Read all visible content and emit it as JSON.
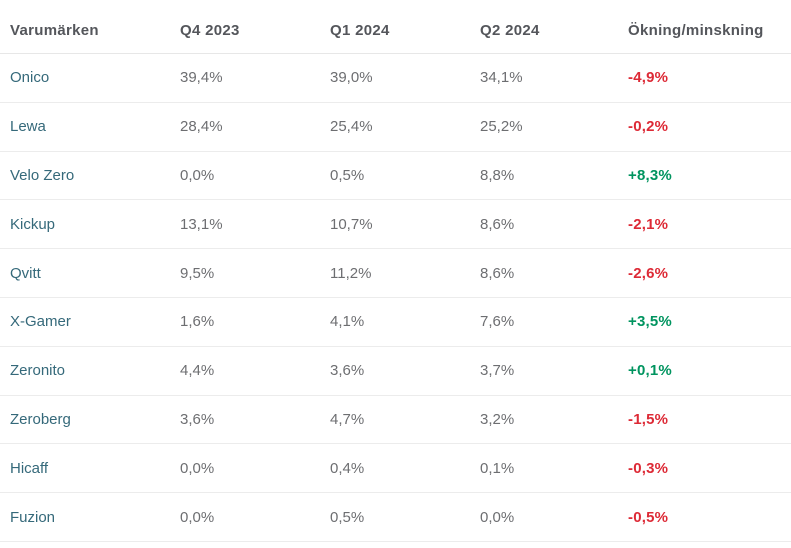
{
  "table": {
    "columns": {
      "brand": "Varumärken",
      "q4_2023": "Q4 2023",
      "q1_2024": "Q1 2024",
      "q2_2024": "Q2 2024",
      "change": "Ökning/minskning"
    },
    "rows": [
      {
        "brand": "Onico",
        "q4_2023": "39,4%",
        "q1_2024": "39,0%",
        "q2_2024": "34,1%",
        "change": "-4,9%",
        "direction": "down"
      },
      {
        "brand": "Lewa",
        "q4_2023": "28,4%",
        "q1_2024": "25,4%",
        "q2_2024": "25,2%",
        "change": "-0,2%",
        "direction": "down"
      },
      {
        "brand": "Velo Zero",
        "q4_2023": "0,0%",
        "q1_2024": "0,5%",
        "q2_2024": "8,8%",
        "change": "+8,3%",
        "direction": "up"
      },
      {
        "brand": "Kickup",
        "q4_2023": "13,1%",
        "q1_2024": "10,7%",
        "q2_2024": "8,6%",
        "change": "-2,1%",
        "direction": "down"
      },
      {
        "brand": "Qvitt",
        "q4_2023": "9,5%",
        "q1_2024": "11,2%",
        "q2_2024": "8,6%",
        "change": "-2,6%",
        "direction": "down"
      },
      {
        "brand": "X-Gamer",
        "q4_2023": "1,6%",
        "q1_2024": "4,1%",
        "q2_2024": "7,6%",
        "change": "+3,5%",
        "direction": "up"
      },
      {
        "brand": "Zeronito",
        "q4_2023": "4,4%",
        "q1_2024": "3,6%",
        "q2_2024": "3,7%",
        "change": "+0,1%",
        "direction": "up"
      },
      {
        "brand": "Zeroberg",
        "q4_2023": "3,6%",
        "q1_2024": "4,7%",
        "q2_2024": "3,2%",
        "change": "-1,5%",
        "direction": "down"
      },
      {
        "brand": "Hicaff",
        "q4_2023": "0,0%",
        "q1_2024": "0,4%",
        "q2_2024": "0,1%",
        "change": "-0,3%",
        "direction": "down"
      },
      {
        "brand": "Fuzion",
        "q4_2023": "0,0%",
        "q1_2024": "0,5%",
        "q2_2024": "0,0%",
        "change": "-0,5%",
        "direction": "down"
      }
    ],
    "colors": {
      "positive": "#00945f",
      "negative": "#dd2a36",
      "brand": "#35697a",
      "header": "#54565b",
      "value": "#6d6e71"
    }
  },
  "chart_data": {
    "type": "table",
    "title": "",
    "column_headers": [
      "Varumärken",
      "Q4 2023",
      "Q1 2024",
      "Q2 2024",
      "Ökning/minskning"
    ],
    "categories": [
      "Q4 2023",
      "Q1 2024",
      "Q2 2024"
    ],
    "series": [
      {
        "name": "Onico",
        "values": [
          39.4,
          39.0,
          34.1
        ],
        "change": -4.9
      },
      {
        "name": "Lewa",
        "values": [
          28.4,
          25.4,
          25.2
        ],
        "change": -0.2
      },
      {
        "name": "Velo Zero",
        "values": [
          0.0,
          0.5,
          8.8
        ],
        "change": 8.3
      },
      {
        "name": "Kickup",
        "values": [
          13.1,
          10.7,
          8.6
        ],
        "change": -2.1
      },
      {
        "name": "Qvitt",
        "values": [
          9.5,
          11.2,
          8.6
        ],
        "change": -2.6
      },
      {
        "name": "X-Gamer",
        "values": [
          1.6,
          4.1,
          7.6
        ],
        "change": 3.5
      },
      {
        "name": "Zeronito",
        "values": [
          4.4,
          3.6,
          3.7
        ],
        "change": 0.1
      },
      {
        "name": "Zeroberg",
        "values": [
          3.6,
          4.7,
          3.2
        ],
        "change": -1.5
      },
      {
        "name": "Hicaff",
        "values": [
          0.0,
          0.4,
          0.1
        ],
        "change": -0.3
      },
      {
        "name": "Fuzion",
        "values": [
          0.0,
          0.5,
          0.0
        ],
        "change": -0.5
      }
    ],
    "value_unit": "%",
    "decimal_separator": ","
  }
}
